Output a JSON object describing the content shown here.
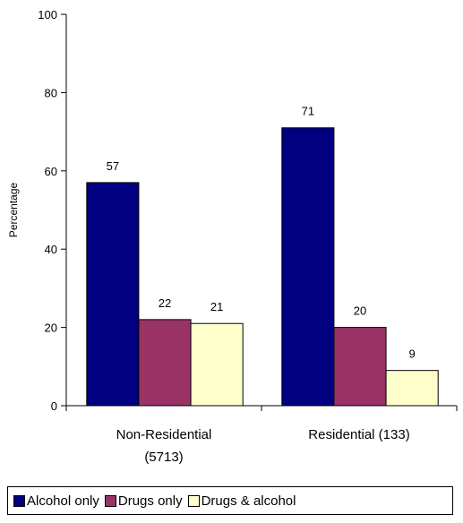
{
  "chart_data": {
    "type": "bar",
    "ylabel": "Percentage",
    "xlabel": "",
    "ylim": [
      0,
      100
    ],
    "yticks": [
      0,
      20,
      40,
      60,
      80,
      100
    ],
    "categories": [
      {
        "line1": "Non-Residential",
        "line2": "(5713)"
      },
      {
        "line1": "Residential  (133)",
        "line2": ""
      }
    ],
    "series": [
      {
        "name": "Alcohol only",
        "color": "#000080",
        "values": [
          57,
          71
        ]
      },
      {
        "name": "Drugs only",
        "color": "#993366",
        "values": [
          22,
          20
        ]
      },
      {
        "name": "Drugs & alcohol",
        "color": "#ffffcc",
        "values": [
          21,
          9
        ]
      }
    ],
    "legend_position": "bottom"
  }
}
